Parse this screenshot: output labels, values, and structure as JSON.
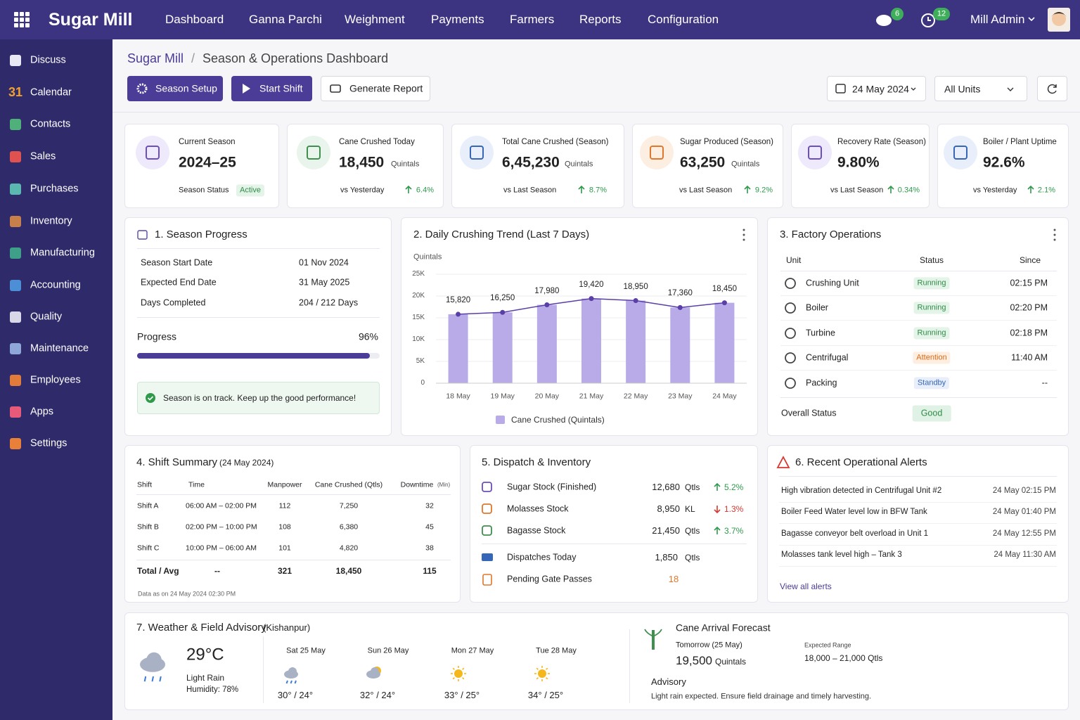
{
  "topbar": {
    "app": "Sugar Mill",
    "nav": [
      "Dashboard",
      "Ganna Parchi",
      "Weighment",
      "Payments",
      "Farmers",
      "Reports",
      "Configuration"
    ],
    "chat_badge": 6,
    "clock_badge": 12,
    "user": "Mill Admin"
  },
  "sidebar": {
    "items": [
      "Discuss",
      "Calendar",
      "Contacts",
      "Sales",
      "Purchases",
      "Inventory",
      "Manufacturing",
      "Accounting",
      "Quality",
      "Maintenance",
      "Employees",
      "Apps",
      "Settings"
    ],
    "calendar_icon": "31"
  },
  "breadcrumb": {
    "items": [
      "Sugar Mill",
      "Season & Operations Dashboard"
    ],
    "separator": "/"
  },
  "actions": [
    "Season Setup",
    "Start Shift",
    "Generate Report"
  ],
  "filters": {
    "date": "24 May 2024",
    "units": "All Units"
  },
  "kpis": [
    {
      "label": "Current Season",
      "value": "2024–25",
      "status_label": "Season Status",
      "status": "Active"
    },
    {
      "label": "Cane Crushed Today",
      "value": "18,450",
      "unit": "Quintals",
      "compare": "vs Yesterday",
      "change": "6.4%"
    },
    {
      "label": "Total Cane Crushed (Season)",
      "value": "6,45,230",
      "unit": "Quintals",
      "compare": "vs Last Season",
      "change": "8.7%"
    },
    {
      "label": "Sugar Produced (Season)",
      "value": "63,250",
      "unit": "Quintals",
      "compare": "vs Last Season",
      "change": "9.2%"
    },
    {
      "label": "Recovery Rate (Season)",
      "value": "9.80%",
      "compare": "vs Last Season",
      "change": "0.34%"
    },
    {
      "label": "Boiler / Plant Uptime",
      "value": "92.6%",
      "compare": "vs Yesterday",
      "change": "2.1%"
    }
  ],
  "season_progress": {
    "title": "1.  Season Progress",
    "rows": [
      [
        "Season Start Date",
        "01 Nov 2024"
      ],
      [
        "Expected End Date",
        "31 May 2025"
      ],
      [
        "Days Completed",
        "204 / 212 Days"
      ]
    ],
    "progress_title": "Progress",
    "progress": {
      "value": 96,
      "label": "96%"
    },
    "note": "Season is on track. Keep up the good performance!"
  },
  "chart_data": {
    "type": "bar",
    "title": "2.  Daily Crushing Trend (Last 7 Days)",
    "y_label": "Quintals",
    "categories": [
      "18 May",
      "19 May",
      "20 May",
      "21 May",
      "22 May",
      "23 May",
      "24 May"
    ],
    "series": [
      {
        "name": "Cane Crushed (Quintals)",
        "color": "#b9abe8",
        "line_color": "#5a3fa6",
        "values": [
          15820,
          16250,
          17980,
          19420,
          18950,
          17360,
          18450
        ],
        "value_labels": [
          "15,820",
          "16,250",
          "17,980",
          "19,420",
          "18,950",
          "17,360",
          "18,450"
        ]
      }
    ],
    "ylim": [
      0,
      25000
    ],
    "yticks": [
      0,
      {
        "value": 5000,
        "label": "5K"
      },
      {
        "value": 10000,
        "label": "10K"
      },
      {
        "value": 15000,
        "label": "15K"
      },
      {
        "value": 20000,
        "label": "20K"
      },
      {
        "value": 25000,
        "label": "25K"
      }
    ],
    "grid": true
  },
  "factory_operations": {
    "title": "3.  Factory Operations",
    "columns": [
      "Unit",
      "Status",
      "Since"
    ],
    "rows": [
      {
        "unit": "Crushing Unit",
        "status": "Running",
        "since": "02:15 PM",
        "tone": "green"
      },
      {
        "unit": "Boiler",
        "status": "Running",
        "since": "02:20 PM",
        "tone": "green"
      },
      {
        "unit": "Turbine",
        "status": "Running",
        "since": "02:18 PM",
        "tone": "green"
      },
      {
        "unit": "Centrifugal",
        "status": "Attention",
        "since": "11:40 AM",
        "tone": "orange"
      },
      {
        "unit": "Packing",
        "status": "Standby",
        "since": "--",
        "tone": "blue"
      }
    ],
    "overall_label": "Overall Status",
    "overall": "Good"
  },
  "shift_summary": {
    "title": "4.  Shift Summary",
    "subtitle": "(24 May 2024)",
    "columns": [
      "Shift",
      "Time",
      "Manpower",
      "Cane Crushed (Qtls)",
      "Downtime"
    ],
    "downtime_unit": "(Min)",
    "rows": [
      [
        "Shift A",
        "06:00 AM – 02:00 PM",
        "112",
        "7,250",
        "32"
      ],
      [
        "Shift B",
        "02:00 PM – 10:00 PM",
        "108",
        "6,380",
        "45"
      ],
      [
        "Shift C",
        "10:00 PM – 06:00 AM",
        "101",
        "4,820",
        "38"
      ]
    ],
    "total": [
      "Total / Avg",
      "--",
      "321",
      "18,450",
      "115"
    ],
    "note": "Data as on 24 May 2024 02:30 PM"
  },
  "dispatch": {
    "title": "5.  Dispatch & Inventory",
    "rows": [
      {
        "label": "Sugar Stock (Finished)",
        "value": "12,680",
        "unit": "Qtls",
        "change": "5.2%",
        "dir": "up"
      },
      {
        "label": "Molasses Stock",
        "value": "8,950",
        "unit": "KL",
        "change": "1.3%",
        "dir": "down"
      },
      {
        "label": "Bagasse Stock",
        "value": "21,450",
        "unit": "Qtls",
        "change": "3.7%",
        "dir": "up"
      }
    ],
    "extra": [
      {
        "label": "Dispatches Today",
        "value": "1,850",
        "unit": "Qtls"
      },
      {
        "label": "Pending Gate Passes",
        "value": "18"
      }
    ]
  },
  "alerts": {
    "title": "6.  Recent Operational Alerts",
    "items": [
      [
        "High vibration detected in Centrifugal Unit #2",
        "24 May 02:15 PM"
      ],
      [
        "Boiler Feed Water level low in BFW Tank",
        "24 May 01:40 PM"
      ],
      [
        "Bagasse conveyor belt overload in Unit 1",
        "24 May 12:55 PM"
      ],
      [
        "Molasses tank level high – Tank 3",
        "24 May 11:30 AM"
      ]
    ],
    "link": "View all alerts"
  },
  "weather": {
    "title": "7.  Weather & Field Advisory",
    "location": "(Kishanpur)",
    "current": {
      "temp": "29°C",
      "condition": "Light Rain",
      "humidity": "Humidity: 78%"
    },
    "forecast": [
      {
        "day": "Sat 25 May",
        "temps": "30°  /  24°",
        "icon": "rain"
      },
      {
        "day": "Sun 26 May",
        "temps": "32°  /  24°",
        "icon": "cloud-sun"
      },
      {
        "day": "Mon 27 May",
        "temps": "33°  /  25°",
        "icon": "sun"
      },
      {
        "day": "Tue 28 May",
        "temps": "34°  /  25°",
        "icon": "sun"
      }
    ]
  },
  "cane_forecast": {
    "title": "Cane Arrival Forecast",
    "label": "Tomorrow (25 May)",
    "value": "19,500",
    "unit": "Quintals",
    "range_label": "Expected Range",
    "range": "18,000 – 21,000 Qtls",
    "advisory_title": "Advisory",
    "advisory": "Light rain expected. Ensure field drainage and timely harvesting."
  }
}
